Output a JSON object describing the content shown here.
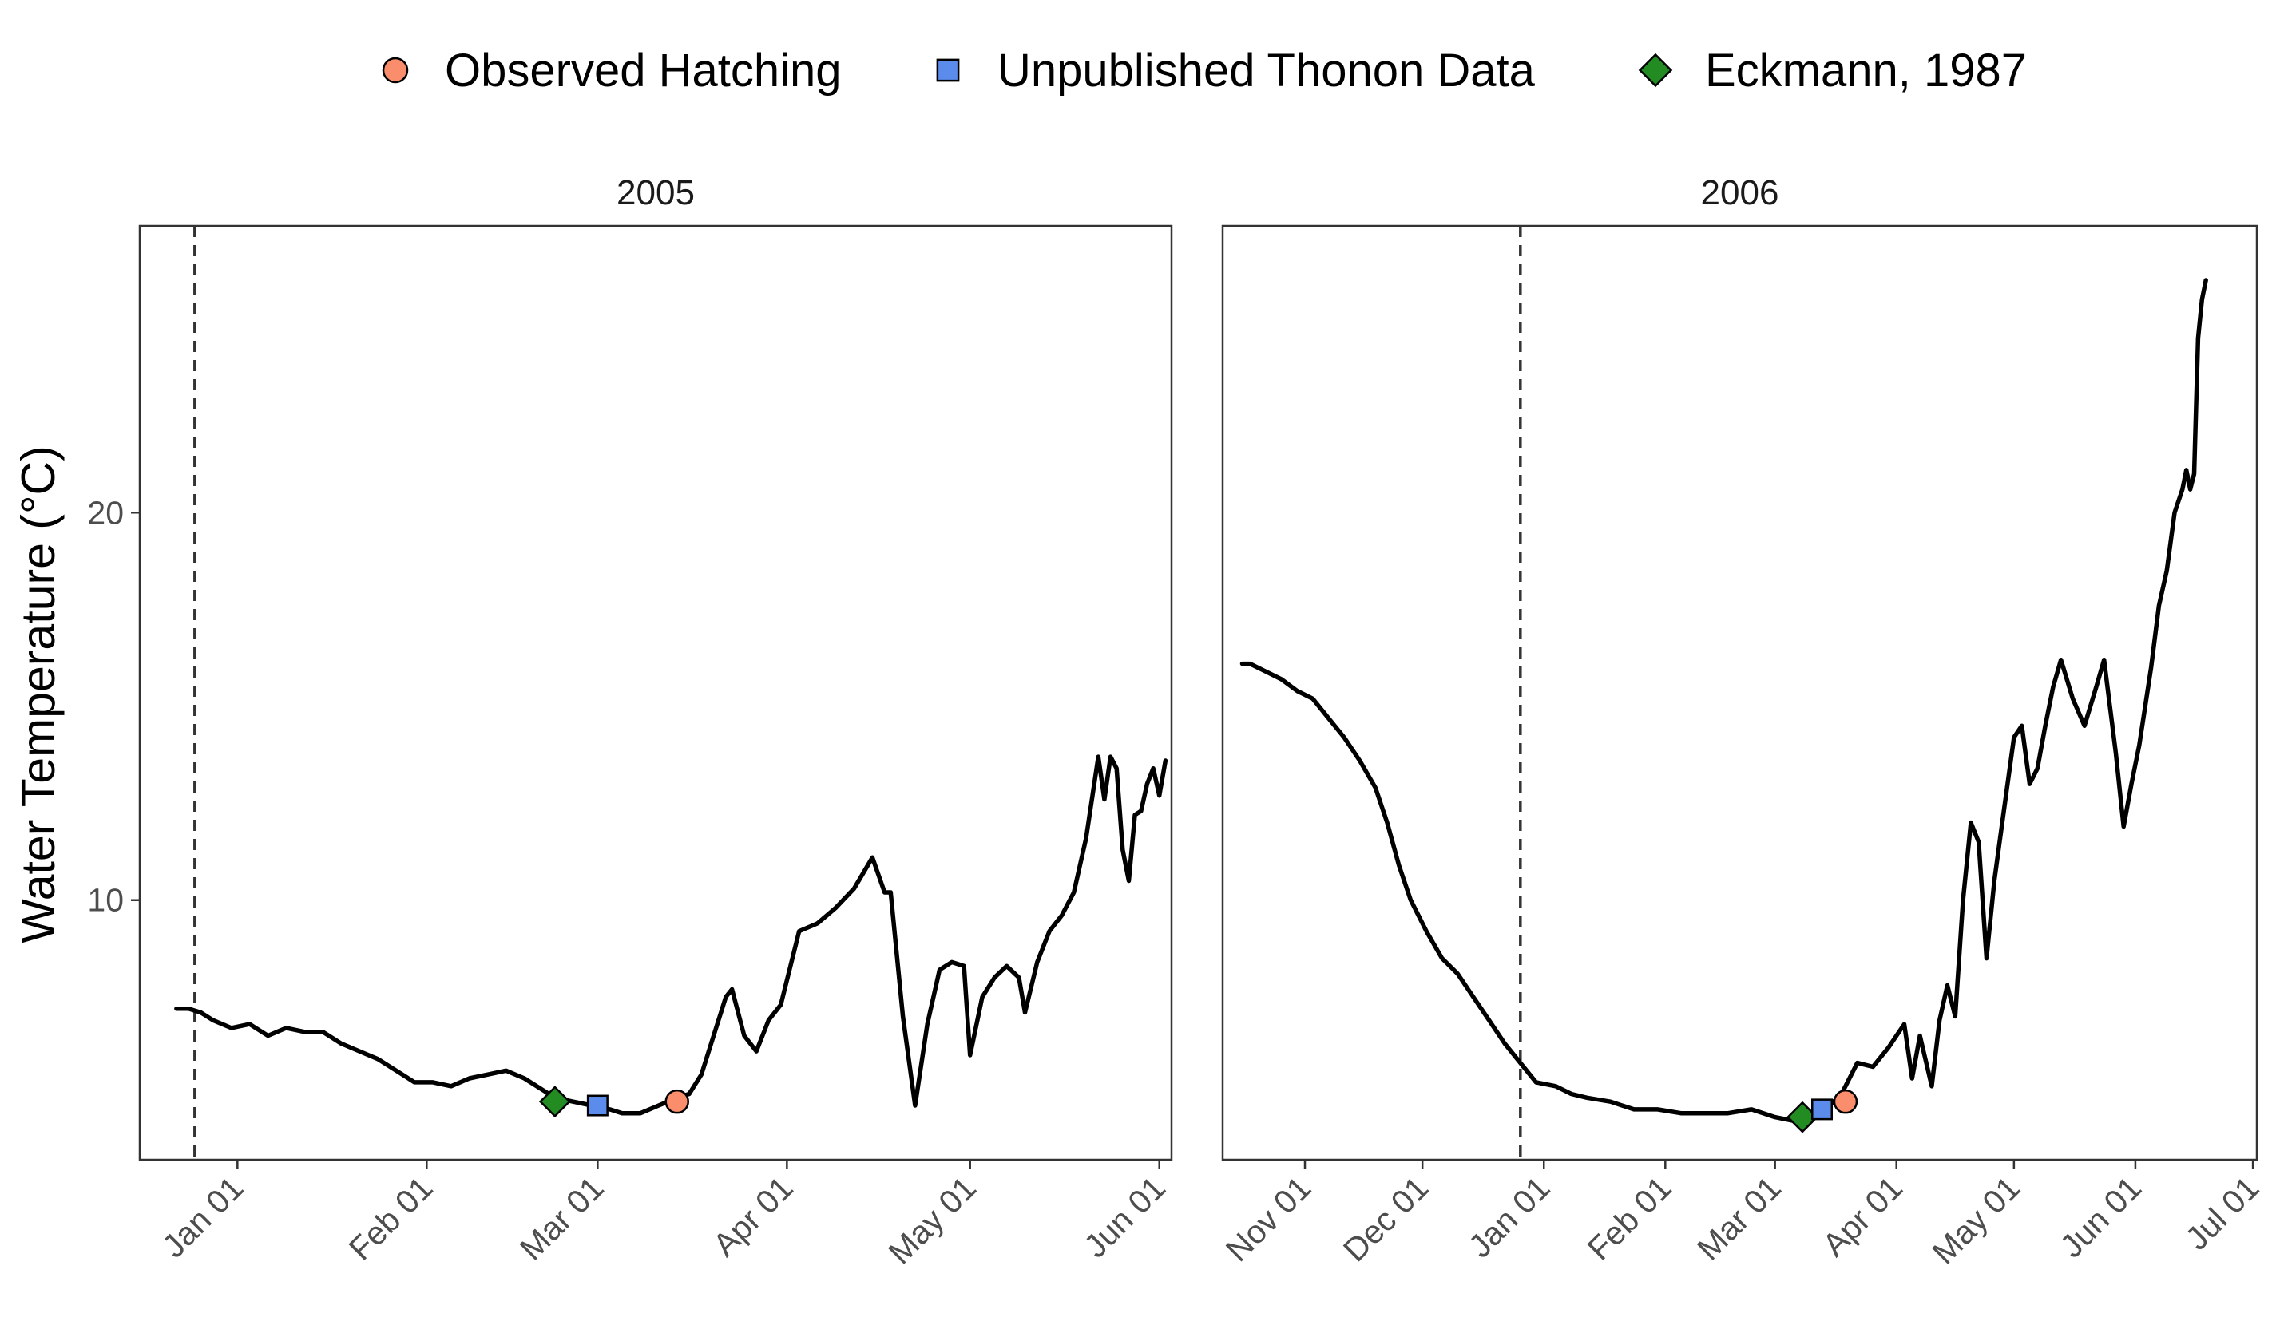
{
  "chart_data": {
    "type": "line",
    "ylabel": "Water Temperature (°C)",
    "y_ticks": [
      "10",
      "20"
    ],
    "legend": {
      "position": "top",
      "entries": [
        {
          "label": "Observed Hatching",
          "shape": "circle",
          "color": "#FA8D6B"
        },
        {
          "label": "Unpublished Thonon Data",
          "shape": "square",
          "color": "#5B8CEB"
        },
        {
          "label": "Eckmann, 1987",
          "shape": "diamond",
          "color": "#228B22"
        }
      ]
    },
    "line_color": "#000000",
    "vline_label_note": "",
    "panels": [
      {
        "title": "2005",
        "ylim": [
          3.3,
          27.4
        ],
        "xlim": [
          "2004-12-16",
          "2005-06-03"
        ],
        "x_ticks": [
          {
            "date": "2005-01-01",
            "label": "Jan 01"
          },
          {
            "date": "2005-02-01",
            "label": "Feb 01"
          },
          {
            "date": "2005-03-01",
            "label": "Mar 01"
          },
          {
            "date": "2005-04-01",
            "label": "Apr 01"
          },
          {
            "date": "2005-05-01",
            "label": "May 01"
          },
          {
            "date": "2005-06-01",
            "label": "Jun 01"
          }
        ],
        "vline_date": "2004-12-25",
        "series": [
          [
            "2004-12-22",
            7.2
          ],
          [
            "2004-12-24",
            7.2
          ],
          [
            "2004-12-26",
            7.1
          ],
          [
            "2004-12-28",
            6.9
          ],
          [
            "2004-12-31",
            6.7
          ],
          [
            "2005-01-03",
            6.8
          ],
          [
            "2005-01-06",
            6.5
          ],
          [
            "2005-01-09",
            6.7
          ],
          [
            "2005-01-12",
            6.6
          ],
          [
            "2005-01-15",
            6.6
          ],
          [
            "2005-01-18",
            6.3
          ],
          [
            "2005-01-21",
            6.1
          ],
          [
            "2005-01-24",
            5.9
          ],
          [
            "2005-01-27",
            5.6
          ],
          [
            "2005-01-30",
            5.3
          ],
          [
            "2005-02-02",
            5.3
          ],
          [
            "2005-02-05",
            5.2
          ],
          [
            "2005-02-08",
            5.4
          ],
          [
            "2005-02-11",
            5.5
          ],
          [
            "2005-02-14",
            5.6
          ],
          [
            "2005-02-17",
            5.4
          ],
          [
            "2005-02-20",
            5.1
          ],
          [
            "2005-02-22",
            4.9
          ],
          [
            "2005-02-25",
            4.8
          ],
          [
            "2005-02-28",
            4.7
          ],
          [
            "2005-03-03",
            4.6
          ],
          [
            "2005-03-05",
            4.5
          ],
          [
            "2005-03-08",
            4.5
          ],
          [
            "2005-03-11",
            4.7
          ],
          [
            "2005-03-14",
            4.9
          ],
          [
            "2005-03-16",
            5.0
          ],
          [
            "2005-03-18",
            5.5
          ],
          [
            "2005-03-20",
            6.5
          ],
          [
            "2005-03-22",
            7.5
          ],
          [
            "2005-03-23",
            7.7
          ],
          [
            "2005-03-25",
            6.5
          ],
          [
            "2005-03-27",
            6.1
          ],
          [
            "2005-03-29",
            6.9
          ],
          [
            "2005-03-31",
            7.3
          ],
          [
            "2005-04-03",
            9.2
          ],
          [
            "2005-04-06",
            9.4
          ],
          [
            "2005-04-09",
            9.8
          ],
          [
            "2005-04-12",
            10.3
          ],
          [
            "2005-04-15",
            11.1
          ],
          [
            "2005-04-17",
            10.2
          ],
          [
            "2005-04-18",
            10.2
          ],
          [
            "2005-04-20",
            7.0
          ],
          [
            "2005-04-22",
            4.7
          ],
          [
            "2005-04-24",
            6.8
          ],
          [
            "2005-04-26",
            8.2
          ],
          [
            "2005-04-28",
            8.4
          ],
          [
            "2005-04-30",
            8.3
          ],
          [
            "2005-05-01",
            6.0
          ],
          [
            "2005-05-03",
            7.5
          ],
          [
            "2005-05-05",
            8.0
          ],
          [
            "2005-05-07",
            8.3
          ],
          [
            "2005-05-09",
            8.0
          ],
          [
            "2005-05-10",
            7.1
          ],
          [
            "2005-05-12",
            8.4
          ],
          [
            "2005-05-14",
            9.2
          ],
          [
            "2005-05-16",
            9.6
          ],
          [
            "2005-05-18",
            10.2
          ],
          [
            "2005-05-20",
            11.6
          ],
          [
            "2005-05-22",
            13.7
          ],
          [
            "2005-05-23",
            12.6
          ],
          [
            "2005-05-24",
            13.7
          ],
          [
            "2005-05-25",
            13.4
          ],
          [
            "2005-05-26",
            11.3
          ],
          [
            "2005-05-27",
            10.5
          ],
          [
            "2005-05-28",
            12.2
          ],
          [
            "2005-05-29",
            12.3
          ],
          [
            "2005-05-30",
            13.0
          ],
          [
            "2005-05-31",
            13.4
          ],
          [
            "2005-06-01",
            12.7
          ],
          [
            "2005-06-02",
            13.6
          ]
        ],
        "markers": [
          {
            "type": "Eckmann, 1987",
            "date": "2005-02-22",
            "y": 4.8
          },
          {
            "type": "Unpublished Thonon Data",
            "date": "2005-03-01",
            "y": 4.7
          },
          {
            "type": "Observed Hatching",
            "date": "2005-03-14",
            "y": 4.8
          }
        ]
      },
      {
        "title": "2006",
        "ylim": [
          3.3,
          27.4
        ],
        "xlim": [
          "2005-10-11",
          "2006-07-02"
        ],
        "x_ticks": [
          {
            "date": "2005-11-01",
            "label": "Nov 01"
          },
          {
            "date": "2005-12-01",
            "label": "Dec 01"
          },
          {
            "date": "2006-01-01",
            "label": "Jan 01"
          },
          {
            "date": "2006-02-01",
            "label": "Feb 01"
          },
          {
            "date": "2006-03-01",
            "label": "Mar 01"
          },
          {
            "date": "2006-04-01",
            "label": "Apr 01"
          },
          {
            "date": "2006-05-01",
            "label": "May 01"
          },
          {
            "date": "2006-06-01",
            "label": "Jun 01"
          },
          {
            "date": "2006-07-01",
            "label": "Jul 01"
          }
        ],
        "vline_date": "2005-12-26",
        "series": [
          [
            "2005-10-16",
            16.1
          ],
          [
            "2005-10-18",
            16.1
          ],
          [
            "2005-10-22",
            15.9
          ],
          [
            "2005-10-26",
            15.7
          ],
          [
            "2005-10-30",
            15.4
          ],
          [
            "2005-11-03",
            15.2
          ],
          [
            "2005-11-07",
            14.7
          ],
          [
            "2005-11-11",
            14.2
          ],
          [
            "2005-11-15",
            13.6
          ],
          [
            "2005-11-19",
            12.9
          ],
          [
            "2005-11-22",
            12.0
          ],
          [
            "2005-11-25",
            10.9
          ],
          [
            "2005-11-28",
            10.0
          ],
          [
            "2005-12-02",
            9.2
          ],
          [
            "2005-12-06",
            8.5
          ],
          [
            "2005-12-10",
            8.1
          ],
          [
            "2005-12-14",
            7.5
          ],
          [
            "2005-12-18",
            6.9
          ],
          [
            "2005-12-22",
            6.3
          ],
          [
            "2005-12-26",
            5.8
          ],
          [
            "2005-12-30",
            5.3
          ],
          [
            "2006-01-04",
            5.2
          ],
          [
            "2006-01-08",
            5.0
          ],
          [
            "2006-01-12",
            4.9
          ],
          [
            "2006-01-18",
            4.8
          ],
          [
            "2006-01-24",
            4.6
          ],
          [
            "2006-01-30",
            4.6
          ],
          [
            "2006-02-05",
            4.5
          ],
          [
            "2006-02-11",
            4.5
          ],
          [
            "2006-02-17",
            4.5
          ],
          [
            "2006-02-23",
            4.6
          ],
          [
            "2006-03-01",
            4.4
          ],
          [
            "2006-03-06",
            4.3
          ],
          [
            "2006-03-10",
            4.5
          ],
          [
            "2006-03-14",
            4.6
          ],
          [
            "2006-03-18",
            5.0
          ],
          [
            "2006-03-22",
            5.8
          ],
          [
            "2006-03-26",
            5.7
          ],
          [
            "2006-03-30",
            6.2
          ],
          [
            "2006-04-03",
            6.8
          ],
          [
            "2006-04-05",
            5.4
          ],
          [
            "2006-04-07",
            6.5
          ],
          [
            "2006-04-10",
            5.2
          ],
          [
            "2006-04-12",
            6.9
          ],
          [
            "2006-04-14",
            7.8
          ],
          [
            "2006-04-16",
            7.0
          ],
          [
            "2006-04-18",
            10.0
          ],
          [
            "2006-04-20",
            12.0
          ],
          [
            "2006-04-22",
            11.5
          ],
          [
            "2006-04-24",
            8.5
          ],
          [
            "2006-04-26",
            10.5
          ],
          [
            "2006-04-28",
            12.0
          ],
          [
            "2006-05-01",
            14.2
          ],
          [
            "2006-05-03",
            14.5
          ],
          [
            "2006-05-05",
            13.0
          ],
          [
            "2006-05-07",
            13.4
          ],
          [
            "2006-05-09",
            14.5
          ],
          [
            "2006-05-11",
            15.5
          ],
          [
            "2006-05-13",
            16.2
          ],
          [
            "2006-05-16",
            15.2
          ],
          [
            "2006-05-19",
            14.5
          ],
          [
            "2006-05-22",
            15.5
          ],
          [
            "2006-05-24",
            16.2
          ],
          [
            "2006-05-27",
            13.8
          ],
          [
            "2006-05-29",
            11.9
          ],
          [
            "2006-05-31",
            13.0
          ],
          [
            "2006-06-02",
            14.0
          ],
          [
            "2006-06-05",
            16.0
          ],
          [
            "2006-06-07",
            17.6
          ],
          [
            "2006-06-09",
            18.5
          ],
          [
            "2006-06-11",
            20.0
          ],
          [
            "2006-06-13",
            20.6
          ],
          [
            "2006-06-14",
            21.1
          ],
          [
            "2006-06-15",
            20.6
          ],
          [
            "2006-06-16",
            21.0
          ],
          [
            "2006-06-17",
            24.5
          ],
          [
            "2006-06-18",
            25.5
          ],
          [
            "2006-06-19",
            26.0
          ]
        ],
        "markers": [
          {
            "type": "Eckmann, 1987",
            "date": "2006-03-08",
            "y": 4.4
          },
          {
            "type": "Unpublished Thonon Data",
            "date": "2006-03-13",
            "y": 4.6
          },
          {
            "type": "Observed Hatching",
            "date": "2006-03-19",
            "y": 4.8
          }
        ]
      }
    ]
  }
}
